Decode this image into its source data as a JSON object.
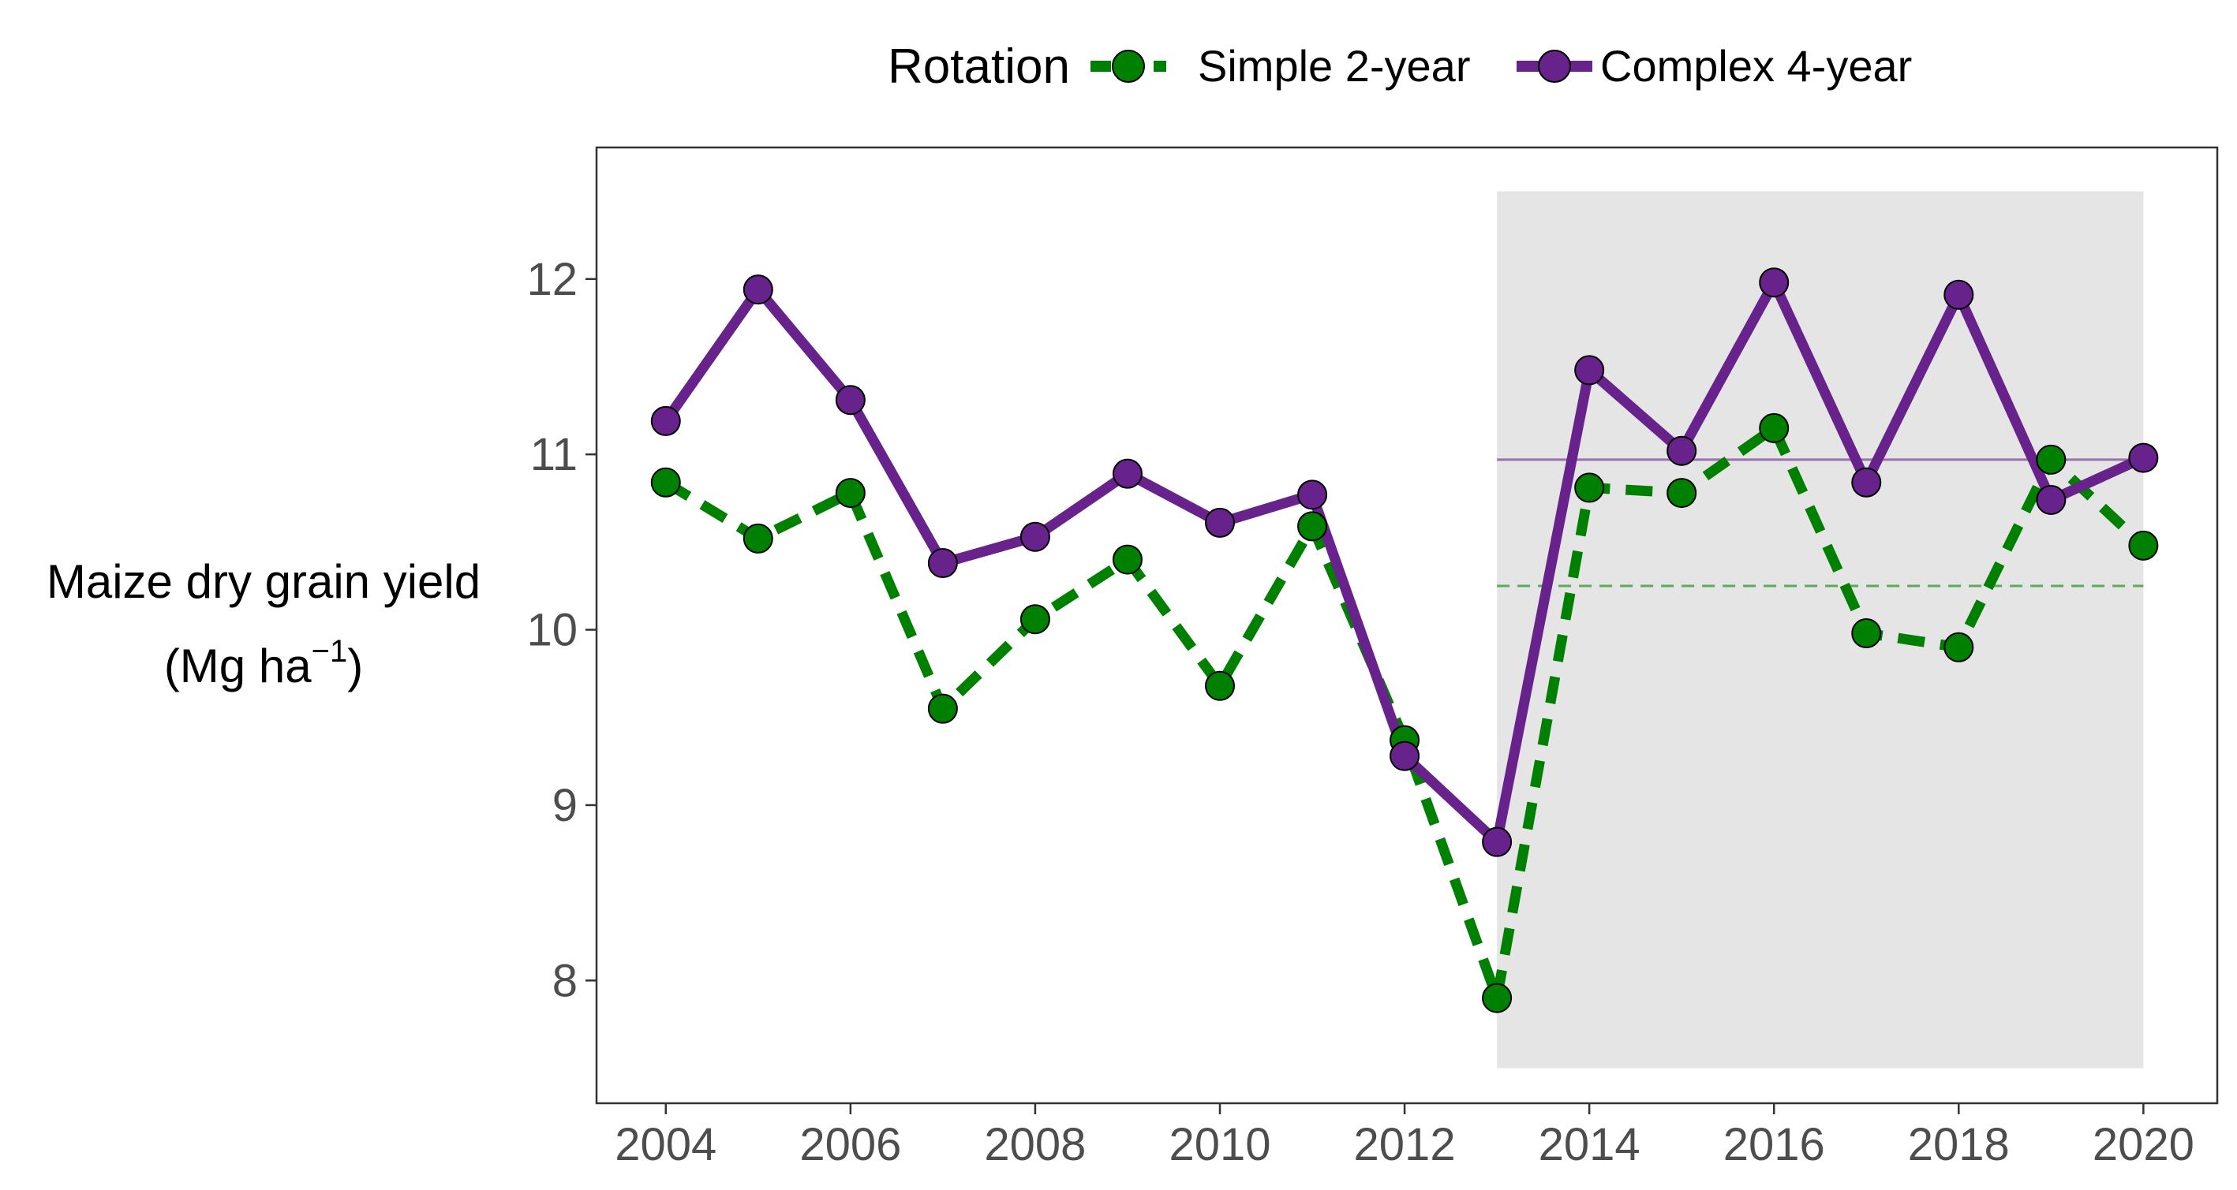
{
  "chart_data": {
    "type": "line",
    "legend": {
      "title": "Rotation",
      "placement": "top"
    },
    "ylabel_line1": "Maize dry grain yield",
    "ylabel_line2_prefix": "(Mg  ha",
    "ylabel_line2_superscript": "−1",
    "ylabel_line2_suffix": ")",
    "xlim": [
      2003.25,
      2020.8
    ],
    "ylim": [
      7.3,
      12.75
    ],
    "x_ticks": [
      2004,
      2006,
      2008,
      2010,
      2012,
      2014,
      2016,
      2018,
      2020
    ],
    "x_tick_labels": [
      "2004",
      "2006",
      "2008",
      "2010",
      "2012",
      "2014",
      "2016",
      "2018",
      "2020"
    ],
    "y_ticks": [
      8,
      9,
      10,
      11,
      12
    ],
    "y_tick_labels": [
      "8",
      "9",
      "10",
      "11",
      "12"
    ],
    "grid": false,
    "shaded_region": {
      "x": [
        2013,
        2020
      ],
      "y": [
        7.5,
        12.5
      ],
      "color": "#e5e5e5"
    },
    "x": [
      2004,
      2005,
      2006,
      2007,
      2008,
      2009,
      2010,
      2011,
      2012,
      2013,
      2014,
      2015,
      2016,
      2017,
      2018,
      2019,
      2020
    ],
    "series": [
      {
        "name": "Simple 2-year",
        "color": "#008000",
        "line_style": "dashed",
        "values": [
          10.84,
          10.52,
          10.78,
          9.55,
          10.06,
          10.4,
          9.68,
          10.59,
          9.37,
          7.9,
          10.81,
          10.78,
          11.15,
          9.98,
          9.9,
          10.97,
          10.48
        ],
        "reference_line": {
          "value": 10.25,
          "x": [
            2013,
            2020
          ],
          "style": "dashed"
        }
      },
      {
        "name": "Complex 4-year",
        "color": "#68228b",
        "line_style": "solid",
        "values": [
          11.19,
          11.94,
          11.31,
          10.38,
          10.53,
          10.89,
          10.61,
          10.77,
          9.28,
          8.79,
          11.48,
          11.02,
          11.98,
          10.84,
          11.91,
          10.74,
          10.98
        ],
        "reference_line": {
          "value": 10.97,
          "x": [
            2013,
            2020
          ],
          "style": "solid"
        }
      }
    ]
  }
}
